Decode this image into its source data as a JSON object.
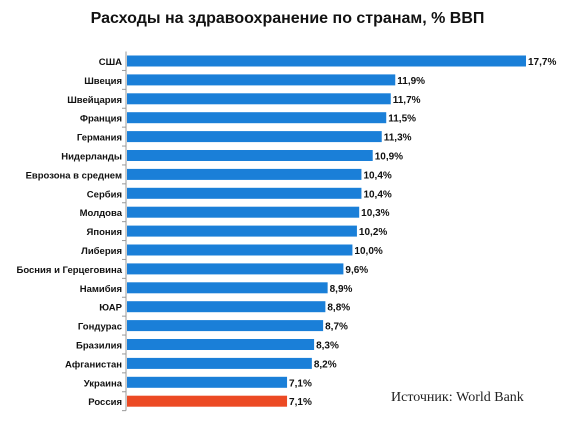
{
  "chart_data": {
    "type": "bar",
    "orientation": "horizontal",
    "title": "Расходы на здравоохранение по странам, % ВВП",
    "source": "Источник: World Bank",
    "xlim": [
      0,
      18
    ],
    "grid": false,
    "categories": [
      "США",
      "Швеция",
      "Швейцария",
      "Франция",
      "Германия",
      "Нидерланды",
      "Еврозона в среднем",
      "Сербия",
      "Молдова",
      "Япония",
      "Либерия",
      "Босния и Герцеговина",
      "Намибия",
      "ЮАР",
      "Гондурас",
      "Бразилия",
      "Афганистан",
      "Украина",
      "Россия"
    ],
    "values": [
      17.7,
      11.9,
      11.7,
      11.5,
      11.3,
      10.9,
      10.4,
      10.4,
      10.3,
      10.2,
      10.0,
      9.6,
      8.9,
      8.8,
      8.7,
      8.3,
      8.2,
      7.1,
      7.1
    ],
    "value_labels": [
      "17,7%",
      "11,9%",
      "11,7%",
      "11,5%",
      "11,3%",
      "10,9%",
      "10,4%",
      "10,4%",
      "10,3%",
      "10,2%",
      "10,0%",
      "9,6%",
      "8,9%",
      "8,8%",
      "8,7%",
      "8,3%",
      "8,2%",
      "7,1%",
      "7,1%"
    ],
    "colors": {
      "default": "#1a7fd8",
      "highlight": "#ec4a24",
      "axis": "#999999",
      "text": "#111111"
    },
    "highlight_index": 18
  }
}
